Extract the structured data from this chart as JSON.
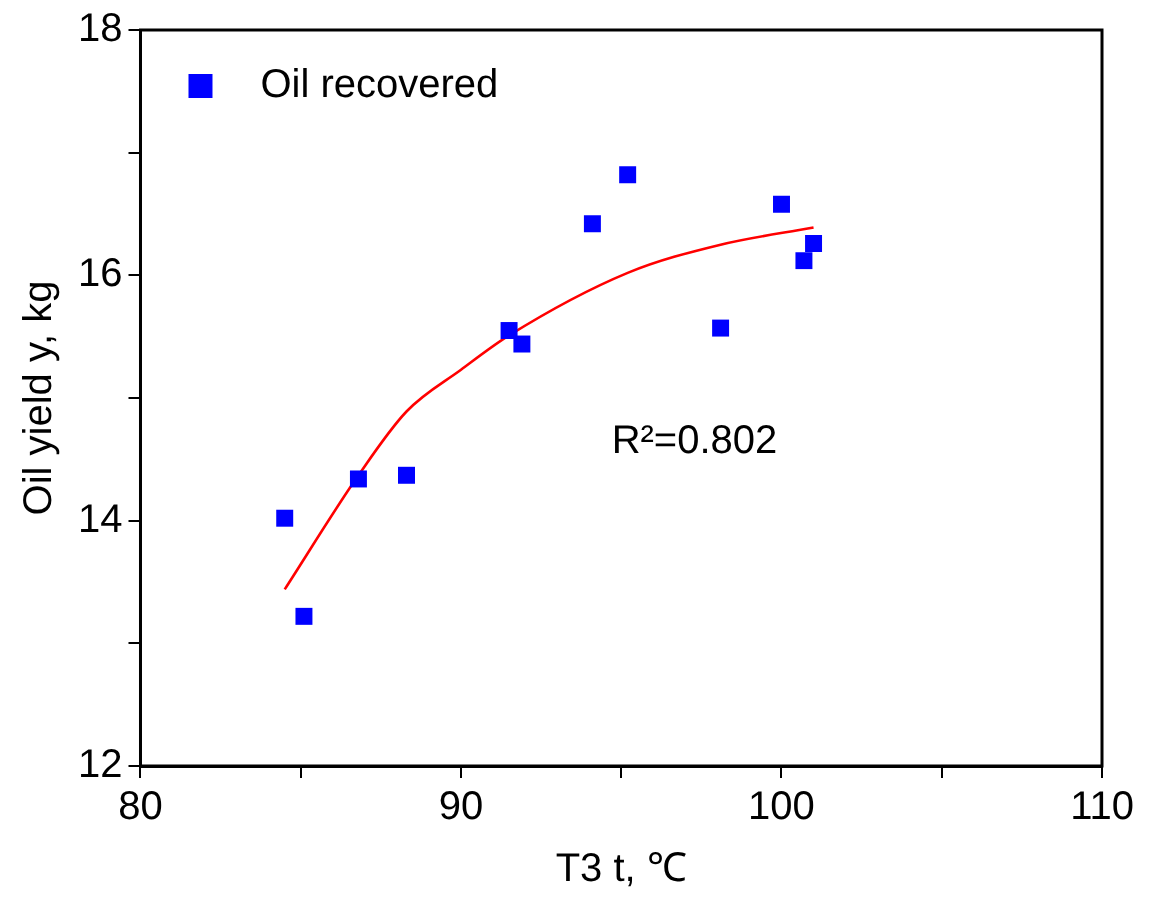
{
  "chart_data": {
    "type": "scatter",
    "xlabel": "T3 t, ℃",
    "ylabel": "Oil yield y, kg",
    "xlim": [
      80,
      110
    ],
    "xticks": [
      80,
      {
        "value": 85,
        "label": null
      },
      90,
      {
        "value": 95,
        "label": null
      },
      100,
      {
        "value": 105,
        "label": null
      },
      110
    ],
    "ylim": [
      12,
      18
    ],
    "yticks": [
      12,
      {
        "value": 13,
        "label": null
      },
      14,
      {
        "value": 15,
        "label": null
      },
      16,
      {
        "value": 17,
        "label": null
      },
      18
    ],
    "grid": false,
    "legend": "top left",
    "marker": "square",
    "annotations": [
      "R²=0.802"
    ],
    "series": [
      {
        "name": "Oil recovered",
        "color": "#0000ff",
        "x": [
          84.5,
          85.1,
          86.8,
          88.3,
          91.5,
          91.9,
          94.1,
          95.2,
          98.1,
          100.0,
          100.7,
          101.0
        ],
        "values": [
          14.02,
          13.22,
          14.34,
          14.37,
          15.55,
          15.44,
          16.42,
          16.82,
          15.57,
          16.58,
          16.12,
          16.26
        ]
      },
      {
        "type": "line",
        "color": "#ff0000",
        "marker": "none",
        "line_style": "solid",
        "x": [
          84.5,
          86.8,
          88.3,
          90.0,
          91.5,
          95.2,
          98.1,
          101.0
        ],
        "values": [
          13.44,
          14.37,
          14.89,
          15.23,
          15.51,
          16.02,
          16.25,
          16.39
        ]
      }
    ]
  }
}
